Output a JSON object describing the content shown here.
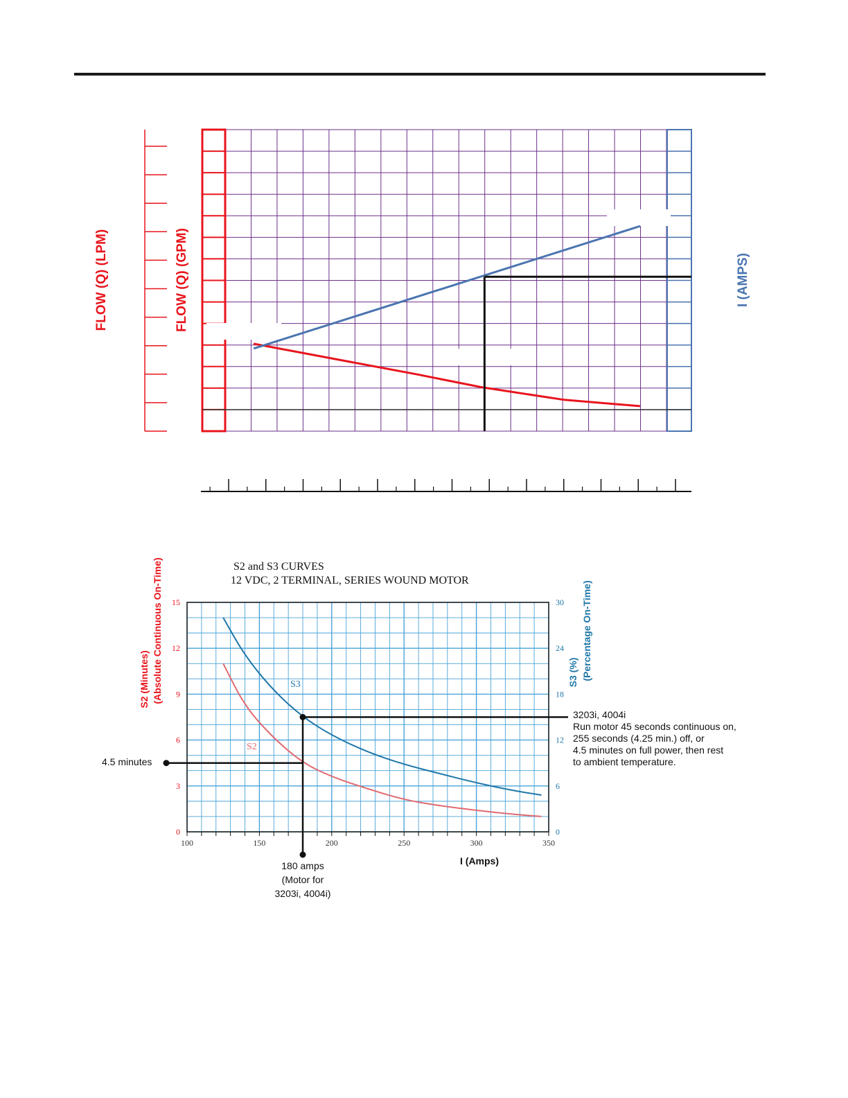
{
  "colors": {
    "flow": "#e8141c",
    "amps": "#4a74b0",
    "grid_top": "#6b2f8a",
    "s2": "#e06a70",
    "s3": "#1f77a8",
    "grid_bottom": "#4aa3d9",
    "ink": "#111111"
  },
  "chart_data": [
    {
      "type": "line",
      "xlabel": "",
      "y_left_outer_label": "FLOW (Q) (LPM)",
      "y_left_inner_label": "FLOW (Q) (GPM)",
      "y_right_label": "I (AMPS)",
      "grid": true,
      "series": [
        {
          "color": "#e8141c",
          "points": [
            [
              0.105,
              0.29
            ],
            [
              0.44,
              0.188
            ],
            [
              0.57,
              0.146
            ],
            [
              0.74,
              0.104
            ],
            [
              0.895,
              0.083
            ]
          ]
        },
        {
          "color": "#4a74b0",
          "points": [
            [
              0.105,
              0.274
            ],
            [
              0.895,
              0.68
            ]
          ]
        }
      ],
      "reference": {
        "x": 0.577,
        "y": 0.512
      }
    },
    {
      "type": "line",
      "title": "S2 and S3 CURVES",
      "subtitle": "12 VDC, 2 TERMINAL, SERIES WOUND MOTOR",
      "xlabel": "I (Amps)",
      "ylabel_left": "S2 (Minutes)",
      "ylabel_left_sub": "(Absolute Continuous On-Time)",
      "ylabel_right": "S3 (%)",
      "ylabel_right_sub": "(Percentage On-Time)",
      "xlim": [
        100,
        350
      ],
      "ylim_left": [
        0,
        15
      ],
      "ylim_right": [
        0,
        30
      ],
      "x_ticks": [
        100,
        150,
        200,
        250,
        300,
        350
      ],
      "y_left_ticks": [
        0,
        3,
        6,
        9,
        12,
        15
      ],
      "y_right_ticks": [
        0,
        6,
        12,
        18,
        24,
        30
      ],
      "grid": true,
      "series": [
        {
          "name": "S2",
          "axis": "left",
          "x": [
            125,
            140,
            160,
            180,
            200,
            225,
            250,
            275,
            300,
            325,
            345
          ],
          "values": [
            11.0,
            8.2,
            6.1,
            4.5,
            3.6,
            2.8,
            2.1,
            1.7,
            1.4,
            1.15,
            1.0
          ]
        },
        {
          "name": "S3",
          "axis": "right",
          "x": [
            125,
            140,
            160,
            180,
            200,
            225,
            250,
            275,
            300,
            325,
            345
          ],
          "values": [
            28.0,
            23.0,
            18.4,
            15.0,
            12.6,
            10.4,
            8.8,
            7.6,
            6.4,
            5.4,
            4.8
          ]
        }
      ],
      "annotations": {
        "minutes_label": "4.5 minutes",
        "amps_label_line1": "180 amps",
        "amps_label_line2": "(Motor for",
        "amps_label_line3": "3203i, 4004i)",
        "note_line1": "3203i, 4004i",
        "note_line2": "Run motor 45 seconds continuous on,",
        "note_line3": "255 seconds (4.25 min.) off, or",
        "note_line4": "4.5 minutes on full power, then rest",
        "note_line5": "to ambient temperature."
      },
      "marker": {
        "x": 180,
        "s2": 4.5,
        "s3": 15.0
      }
    }
  ]
}
